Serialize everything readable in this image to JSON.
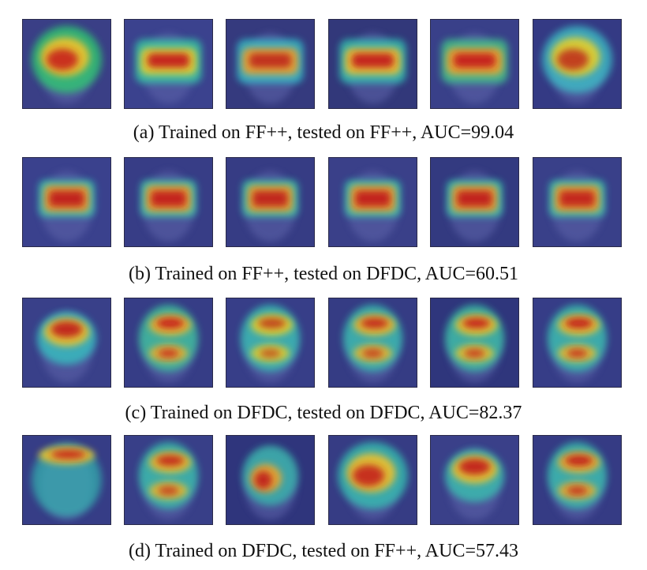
{
  "figure": {
    "rows": [
      {
        "caption": "(a) Trained on FF++, tested on FF++, AUC=99.04",
        "tiles": [
          {
            "bg": "#3a3f86",
            "hot": "#c8201d",
            "mid": "#f2c32a",
            "cool": "#2dd36f",
            "shape": "mask"
          },
          {
            "bg": "#3b428e",
            "hot": "#c41f1c",
            "mid": "#eed02a",
            "cool": "#35d4a8",
            "shape": "band"
          },
          {
            "bg": "#353a7e",
            "hot": "#c02a1e",
            "mid": "#f0a52a",
            "cool": "#34c9cf",
            "shape": "band"
          },
          {
            "bg": "#32387a",
            "hot": "#c31d1c",
            "mid": "#f5c12a",
            "cool": "#33cdb8",
            "shape": "band"
          },
          {
            "bg": "#394089",
            "hot": "#c51c1a",
            "mid": "#f3a62b",
            "cool": "#41d08c",
            "shape": "band"
          },
          {
            "bg": "#343a84",
            "hot": "#c0301f",
            "mid": "#e6d12a",
            "cool": "#3cc6c9",
            "shape": "mask"
          }
        ]
      },
      {
        "caption": "(b) Trained on FF++, tested on DFDC, AUC=60.51",
        "tiles": [
          {
            "bg": "#3a418d",
            "hot": "#bf1f1c",
            "mid": "#f2a52a",
            "cool": "#37c8b3",
            "shape": "box"
          },
          {
            "bg": "#373d86",
            "hot": "#c21e1b",
            "mid": "#f1a82a",
            "cool": "#3ac9b0",
            "shape": "box"
          },
          {
            "bg": "#363c84",
            "hot": "#bf201c",
            "mid": "#efaa2a",
            "cool": "#39c6ad",
            "shape": "box"
          },
          {
            "bg": "#3a4089",
            "hot": "#c11f1c",
            "mid": "#f1a72a",
            "cool": "#38c8b1",
            "shape": "box"
          },
          {
            "bg": "#333a80",
            "hot": "#c01f1c",
            "mid": "#f0a62a",
            "cool": "#38c7b0",
            "shape": "box"
          },
          {
            "bg": "#394089",
            "hot": "#c2201c",
            "mid": "#f0a82a",
            "cool": "#39c8b0",
            "shape": "box"
          }
        ]
      },
      {
        "caption": "(c) Trained on DFDC, tested on DFDC, AUC=82.37",
        "tiles": [
          {
            "bg": "#394089",
            "hot": "#c0201c",
            "mid": "#f0c52a",
            "cool": "#34c9c3",
            "shape": "oval"
          },
          {
            "bg": "#363d86",
            "hot": "#c61e1b",
            "mid": "#f1b82a",
            "cool": "#3ccb9e",
            "shape": "split"
          },
          {
            "bg": "#373e88",
            "hot": "#c0401f",
            "mid": "#e9d42a",
            "cool": "#38c8b5",
            "shape": "split"
          },
          {
            "bg": "#353c84",
            "hot": "#c2281c",
            "mid": "#efc02a",
            "cool": "#37c7b2",
            "shape": "split"
          },
          {
            "bg": "#2f367c",
            "hot": "#c5201c",
            "mid": "#eec82a",
            "cool": "#3ac9a8",
            "shape": "split"
          },
          {
            "bg": "#363d87",
            "hot": "#c21f1c",
            "mid": "#f0c22a",
            "cool": "#38c8b0",
            "shape": "split"
          }
        ]
      },
      {
        "caption": "(d) Trained on DFDC, tested on FF++, AUC=57.43",
        "tiles": [
          {
            "bg": "#363d86",
            "hot": "#c4201c",
            "mid": "#f0c42a",
            "cool": "#33c9b6",
            "shape": "topband"
          },
          {
            "bg": "#383f88",
            "hot": "#c2261c",
            "mid": "#efc02a",
            "cool": "#39c8ad",
            "shape": "split"
          },
          {
            "bg": "#2f357c",
            "hot": "#c0201c",
            "mid": "#f0a82a",
            "cool": "#38c7b0",
            "shape": "spot"
          },
          {
            "bg": "#363c84",
            "hot": "#c4201c",
            "mid": "#f0c02a",
            "cool": "#36c8b3",
            "shape": "mask"
          },
          {
            "bg": "#3a4089",
            "hot": "#c2201c",
            "mid": "#f0c22a",
            "cool": "#38c8b1",
            "shape": "oval"
          },
          {
            "bg": "#353b84",
            "hot": "#c01f1c",
            "mid": "#f0b42a",
            "cool": "#38c8b0",
            "shape": "split"
          }
        ]
      }
    ]
  }
}
